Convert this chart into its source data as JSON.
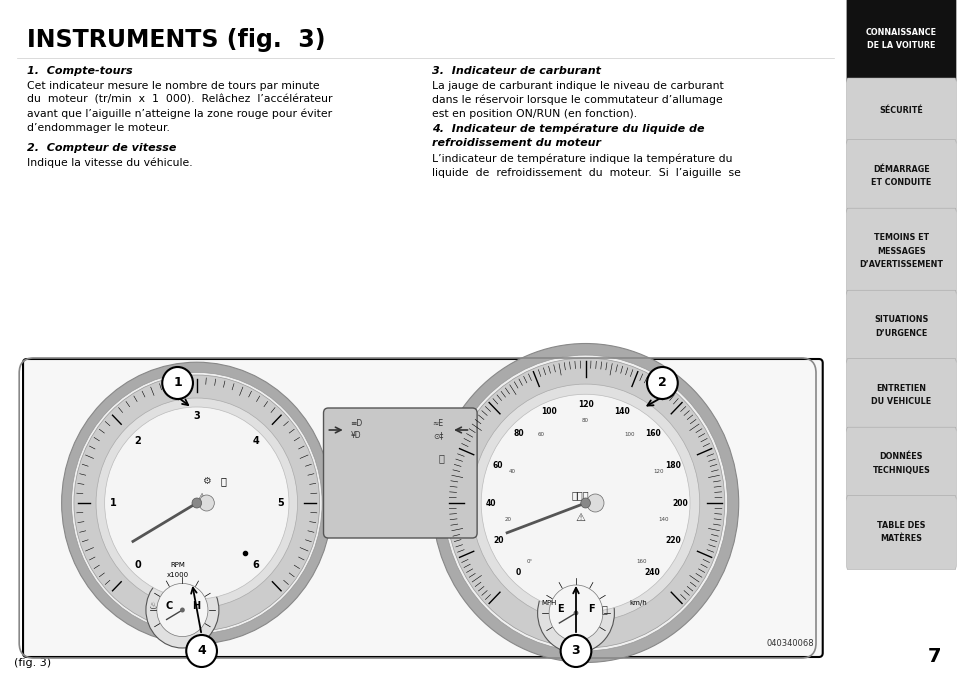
{
  "title": "INSTRUMENTS (fig.  3)",
  "bg_color": "#ffffff",
  "section1_head": "1.  Compte-tours",
  "section1_body": "Cet indicateur mesure le nombre de tours par minute\ndu  moteur  (tr/min  x  1  000).  Relâchez  l’accélérateur\navant que l’aiguille n’atteigne la zone rouge pour éviter\nd’endommager le moteur.",
  "section2_head": "2.  Compteur de vitesse",
  "section2_body": "Indique la vitesse du véhicule.",
  "section3_head": "3.  Indicateur de carburant",
  "section3_body": "La jauge de carburant indique le niveau de carburant\ndans le réservoir lorsque le commutateur d’allumage\nest en position ON/RUN (en fonction).",
  "section4_head1": "4.  Indicateur de température du liquide de",
  "section4_head2": "refroidissement du moteur",
  "section4_body": "L’indicateur de température indique la température du\nliquide  de  refroidissement  du  moteur.  Si  l’aiguille  se",
  "sidebar_items": [
    {
      "text": "CONNAISSANCE\nDE LA VOITURE",
      "active": true
    },
    {
      "text": "SÉCURITÉ",
      "active": false
    },
    {
      "text": "DÉMARRAGE\nET CONDUITE",
      "active": false
    },
    {
      "text": "TEMOINS ET\nMESSAGES\nD’AVERTISSEMENT",
      "active": false
    },
    {
      "text": "SITUATIONS\nD’URGENCE",
      "active": false
    },
    {
      "text": "ENTRETIEN\nDU VEHICULE",
      "active": false
    },
    {
      "text": "DONNÉES\nTECHNIQUES",
      "active": false
    },
    {
      "text": "TABLE DES\nMATÈRES",
      "active": false
    }
  ],
  "page_number": "7",
  "fig_label": "(fig. 3)",
  "ref_code": "040340068",
  "tach_labels": [
    "0",
    "1",
    "2",
    "3",
    "4",
    "5",
    "6"
  ],
  "speed_labels_main": [
    "0",
    "20",
    "40",
    "60",
    "80",
    "100",
    "120",
    "140",
    "160",
    "180",
    "200",
    "220",
    "240"
  ],
  "speed_labels_mph": [
    "0°",
    "20",
    "40",
    "60",
    "80",
    "100",
    "120",
    "140",
    "160"
  ],
  "outer_border_color": "#000000",
  "gauge_outer_color": "#c8c8c8",
  "gauge_face_color": "#f2f2f2",
  "gauge_ring_color": "#d5d5d5",
  "gauge_inner_color": "#e8e8e8",
  "center_bg": "#d0d0d0"
}
